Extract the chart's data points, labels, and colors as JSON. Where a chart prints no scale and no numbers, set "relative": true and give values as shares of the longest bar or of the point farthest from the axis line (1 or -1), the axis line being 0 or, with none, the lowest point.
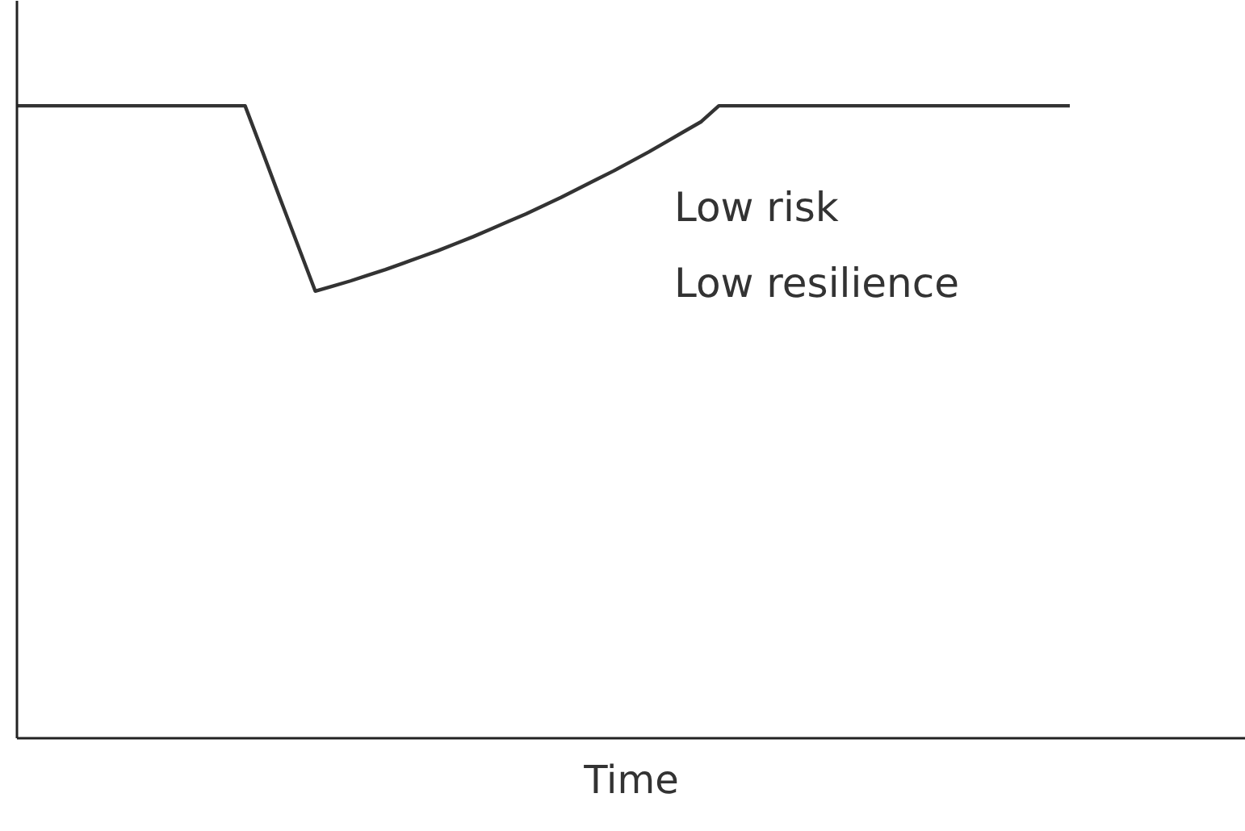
{
  "chart_data": {
    "type": "line",
    "relative": true,
    "xlabel": "Time",
    "annotations": [
      "Low risk\nLow resilience"
    ],
    "categories": [
      null,
      null,
      null,
      null,
      null,
      null,
      null,
      null,
      null,
      null,
      null,
      null,
      null,
      null,
      null,
      null,
      null,
      null,
      null,
      null,
      null,
      null,
      null,
      null,
      null,
      null,
      null,
      null,
      null,
      null,
      null,
      null,
      null,
      null,
      null,
      null,
      null,
      null,
      null,
      null,
      null,
      null,
      null,
      null,
      null,
      null,
      null,
      null,
      null,
      null,
      null,
      null,
      null,
      null,
      null,
      null,
      null,
      null,
      null,
      null,
      null
    ],
    "series": [
      {
        "color": "#333333",
        "values": [
          1,
          1,
          1,
          1,
          1,
          1,
          1,
          1,
          1,
          1,
          1,
          1,
          1,
          1,
          0.927,
          0.853,
          0.78,
          0.707,
          0.715,
          0.723,
          0.732,
          0.741,
          0.751,
          0.761,
          0.771,
          0.782,
          0.793,
          0.805,
          0.817,
          0.829,
          0.842,
          0.855,
          0.869,
          0.883,
          0.897,
          0.912,
          0.927,
          0.943,
          0.959,
          0.975,
          1,
          1,
          1,
          1,
          1,
          1,
          1,
          1,
          1,
          1,
          1,
          1,
          1,
          1,
          1,
          1,
          1,
          1,
          1,
          1,
          1
        ]
      }
    ]
  }
}
